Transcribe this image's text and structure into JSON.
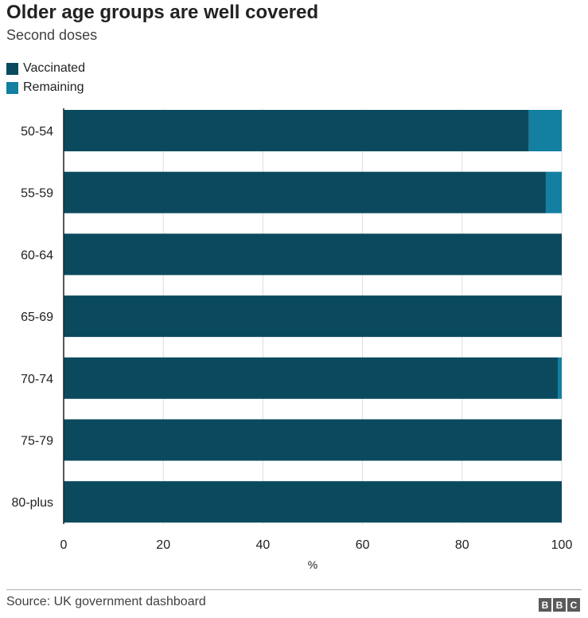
{
  "chart_data": {
    "type": "bar",
    "orientation": "horizontal",
    "stacked": true,
    "title": "Older age groups are well covered",
    "subtitle": "Second doses",
    "categories": [
      "50-54",
      "55-59",
      "60-64",
      "65-69",
      "70-74",
      "75-79",
      "80-plus"
    ],
    "series": [
      {
        "name": "Vaccinated",
        "color": "#0b4a5e",
        "values": [
          93.4,
          96.8,
          100,
          100,
          99.2,
          100,
          100
        ]
      },
      {
        "name": "Remaining",
        "color": "#1380a1",
        "values": [
          6.6,
          3.2,
          0,
          0,
          0.8,
          0,
          0
        ]
      }
    ],
    "xlim": [
      0,
      100
    ],
    "xticks": [
      "0",
      "20",
      "40",
      "60",
      "80",
      "100"
    ],
    "xtick_values": [
      0,
      20,
      40,
      60,
      80,
      100
    ],
    "xlabel": "%",
    "grid": "vertical",
    "legend_position": "top-left"
  },
  "source": "Source: UK government dashboard",
  "logo": [
    "B",
    "B",
    "C"
  ]
}
